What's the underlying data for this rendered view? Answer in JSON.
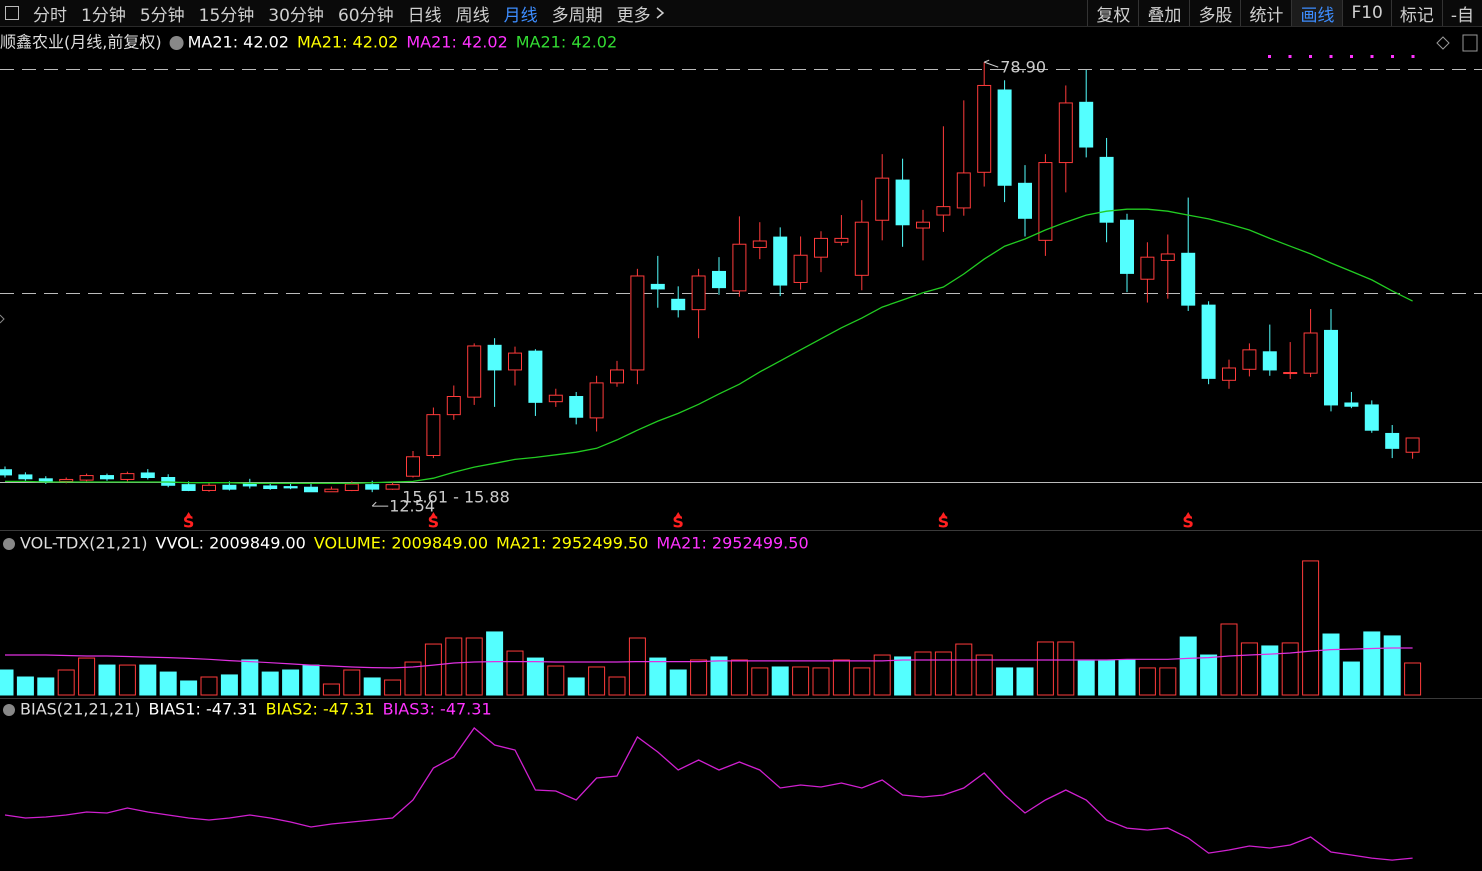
{
  "toolbar": {
    "left": [
      "分时",
      "1分钟",
      "5分钟",
      "15分钟",
      "30分钟",
      "60分钟",
      "日线",
      "周线",
      "月线",
      "多周期",
      "更多"
    ],
    "active_left": 8,
    "right": [
      "复权",
      "叠加",
      "多股",
      "统计",
      "画线",
      "F10",
      "标记",
      "-自"
    ],
    "active_right": 4
  },
  "chart_data": [
    {
      "type": "candlestick",
      "title": "顺鑫农业(月线,前复权)",
      "legend": [
        {
          "text": "MA21: 42.02",
          "color": "#ffffff"
        },
        {
          "text": "MA21: 42.02",
          "color": "#ffff00"
        },
        {
          "text": "MA21: 42.02",
          "color": "#ff33ff"
        },
        {
          "text": "MA21: 42.02",
          "color": "#33dd33"
        }
      ],
      "up_color": "#ff3b3b",
      "down_color": "#54ffff",
      "open": [
        16.0,
        15.2,
        14.6,
        14.2,
        14.4,
        15.1,
        14.5,
        15.5,
        14.8,
        13.7,
        12.8,
        13.6,
        13.9,
        13.5,
        13.4,
        13.3,
        12.6,
        12.8,
        13.7,
        13.0,
        15.0,
        18.2,
        24.5,
        27.2,
        35.2,
        31.4,
        34.3,
        26.5,
        27.3,
        24.0,
        29.4,
        31.4,
        44.6,
        42.3,
        40.7,
        46.6,
        43.6,
        50.3,
        51.9,
        44.9,
        48.8,
        51.1,
        46.0,
        54.5,
        60.7,
        53.3,
        55.3,
        56.4,
        61.9,
        74.6,
        60.2,
        51.4,
        63.4,
        72.7,
        64.2,
        54.5,
        45.4,
        48.3,
        49.4,
        41.4,
        29.8,
        31.5,
        34.2,
        30.9,
        30.9,
        37.5,
        26.3,
        26.0,
        21.6,
        18.7
      ],
      "high": [
        16.5,
        15.6,
        15.0,
        14.8,
        15.4,
        15.4,
        15.7,
        16.1,
        15.3,
        14.2,
        14.0,
        14.2,
        14.6,
        14.0,
        14.0,
        13.9,
        13.4,
        14.2,
        14.3,
        14.1,
        18.9,
        25.6,
        29.0,
        35.5,
        36.3,
        35.0,
        34.6,
        28.5,
        28.0,
        30.5,
        32.8,
        47.0,
        49.0,
        44.3,
        47.0,
        48.8,
        55.1,
        54.2,
        53.4,
        52.0,
        52.8,
        55.3,
        57.6,
        64.7,
        64.0,
        56.1,
        69.0,
        73.0,
        78.9,
        76.1,
        63.0,
        64.7,
        75.3,
        77.7,
        67.2,
        55.5,
        51.1,
        52.3,
        58.0,
        42.0,
        33.0,
        35.5,
        38.4,
        35.7,
        40.8,
        40.8,
        28.0,
        26.7,
        22.9,
        20.9
      ],
      "low": [
        14.8,
        14.3,
        13.8,
        13.9,
        14.2,
        14.3,
        14.2,
        14.5,
        13.3,
        12.7,
        12.6,
        12.8,
        13.1,
        12.9,
        13.0,
        12.6,
        12.6,
        12.7,
        12.54,
        12.9,
        14.8,
        17.8,
        23.7,
        26.0,
        25.7,
        29.0,
        24.3,
        25.7,
        23.0,
        21.9,
        28.8,
        29.2,
        41.0,
        39.5,
        36.3,
        43.0,
        42.7,
        48.5,
        42.8,
        43.8,
        46.5,
        50.6,
        43.7,
        51.4,
        50.4,
        48.3,
        52.7,
        55.2,
        59.7,
        57.3,
        52.0,
        49.0,
        58.8,
        64.2,
        51.1,
        43.4,
        41.8,
        42.4,
        40.5,
        29.2,
        28.5,
        30.4,
        30.5,
        30.0,
        30.3,
        25.0,
        25.5,
        21.7,
        17.8,
        17.7
      ],
      "close": [
        15.2,
        14.6,
        14.2,
        14.5,
        15.1,
        14.6,
        15.4,
        14.8,
        13.6,
        12.8,
        13.6,
        13.0,
        13.5,
        13.1,
        13.2,
        12.6,
        13.0,
        13.8,
        13.0,
        13.7,
        18.0,
        24.5,
        27.3,
        35.1,
        31.4,
        34.0,
        26.4,
        27.5,
        24.1,
        29.4,
        31.4,
        45.9,
        43.9,
        40.7,
        45.9,
        44.1,
        50.8,
        51.3,
        44.5,
        49.1,
        51.7,
        51.7,
        54.2,
        61.0,
        53.8,
        54.2,
        56.6,
        61.8,
        75.3,
        59.9,
        54.8,
        63.4,
        72.6,
        65.8,
        54.2,
        46.3,
        48.8,
        49.3,
        41.4,
        30.1,
        31.7,
        34.5,
        31.4,
        31.0,
        37.1,
        26.0,
        25.8,
        22.1,
        19.3,
        20.9
      ],
      "ma": {
        "color": "#22cc22",
        "values": [
          14.2,
          14.2,
          14.1,
          14.1,
          14.1,
          14.1,
          14.1,
          14.1,
          14.1,
          14.0,
          14.0,
          14.0,
          13.9,
          13.9,
          13.9,
          13.9,
          13.9,
          13.9,
          14.0,
          14.1,
          14.2,
          14.7,
          15.6,
          16.4,
          17.0,
          17.6,
          17.9,
          18.3,
          18.7,
          19.3,
          20.6,
          22.1,
          23.5,
          24.7,
          26.1,
          27.7,
          29.2,
          31.1,
          32.8,
          34.5,
          36.2,
          37.9,
          39.4,
          41.1,
          42.2,
          43.3,
          44.2,
          46.2,
          48.5,
          50.5,
          51.6,
          53.0,
          54.2,
          55.3,
          55.9,
          56.2,
          56.2,
          55.9,
          55.3,
          54.7,
          53.9,
          53.0,
          51.7,
          50.5,
          49.3,
          47.9,
          46.6,
          45.3,
          43.6,
          42.02
        ]
      },
      "levels": [
        {
          "value": 77.8,
          "style": "dashed"
        },
        {
          "value": 43.3,
          "style": "dashed"
        },
        {
          "value": 14.1,
          "style": "solid"
        }
      ],
      "annotations": [
        "78.90",
        "12.54",
        "15.61 - 15.88"
      ],
      "signals": {
        "label": "S",
        "color": "#ff2020",
        "candles": [
          9,
          21,
          33,
          46,
          58
        ]
      },
      "ylim": [
        6.7,
        80.0
      ]
    },
    {
      "type": "bar",
      "title": "VOL-TDX(21,21)",
      "legend": [
        {
          "text": "VVOL: 2009849.00",
          "color": "#ffffff"
        },
        {
          "text": "VOLUME: 2009849.00",
          "color": "#ffff00"
        },
        {
          "text": "MA21: 2952499.50",
          "color": "#ffff00"
        },
        {
          "text": "MA21: 2952499.50",
          "color": "#ff33ff"
        }
      ],
      "values": [
        1570000,
        1130000,
        1070000,
        1570000,
        2320000,
        1880000,
        1880000,
        1880000,
        1440000,
        880000,
        1130000,
        1260000,
        2200000,
        1440000,
        1570000,
        1880000,
        690000,
        1570000,
        1070000,
        940000,
        2070000,
        3200000,
        3580000,
        3580000,
        3960000,
        2760000,
        2320000,
        1820000,
        1070000,
        1760000,
        1130000,
        3580000,
        2320000,
        1570000,
        2200000,
        2390000,
        2200000,
        1700000,
        1760000,
        1760000,
        1700000,
        2200000,
        1700000,
        2510000,
        2390000,
        2700000,
        2700000,
        3200000,
        2510000,
        1700000,
        1700000,
        3330000,
        3330000,
        2200000,
        2200000,
        2200000,
        1700000,
        1700000,
        3640000,
        2510000,
        4460000,
        3270000,
        3080000,
        3270000,
        8420000,
        3830000,
        2070000,
        3960000,
        3710000,
        2009849
      ],
      "ma": {
        "color": "#e030e0",
        "values": [
          2510000,
          2510000,
          2510000,
          2480000,
          2450000,
          2450000,
          2420000,
          2380000,
          2350000,
          2300000,
          2240000,
          2160000,
          2100000,
          2030000,
          1950000,
          1880000,
          1820000,
          1760000,
          1720000,
          1700000,
          1760000,
          1880000,
          2010000,
          2070000,
          2100000,
          2100000,
          2100000,
          2070000,
          2070000,
          2070000,
          2070000,
          2100000,
          2100000,
          2100000,
          2100000,
          2140000,
          2140000,
          2140000,
          2140000,
          2140000,
          2140000,
          2140000,
          2140000,
          2140000,
          2200000,
          2200000,
          2200000,
          2200000,
          2200000,
          2200000,
          2200000,
          2200000,
          2200000,
          2200000,
          2200000,
          2240000,
          2240000,
          2240000,
          2300000,
          2350000,
          2450000,
          2510000,
          2570000,
          2640000,
          2760000,
          2850000,
          2880000,
          2920000,
          2950000,
          2952499.5
        ]
      },
      "ylim": [
        0,
        8792000
      ]
    },
    {
      "type": "line",
      "title": "BIAS(21,21,21)",
      "legend": [
        {
          "text": "BIAS1: -47.31",
          "color": "#ffffff"
        },
        {
          "text": "BIAS2: -47.31",
          "color": "#ffff00"
        },
        {
          "text": "BIAS3: -47.31",
          "color": "#ff33ff"
        }
      ],
      "color": "#d020d0",
      "values": [
        6.2,
        2.5,
        3.7,
        6.2,
        10.0,
        8.7,
        14.9,
        10.0,
        6.2,
        2.5,
        0,
        2.5,
        6.2,
        2.5,
        -2.5,
        -8.7,
        -5.0,
        -2.5,
        0,
        2.5,
        24.9,
        64.7,
        78.4,
        114.4,
        93.3,
        87.1,
        37.3,
        36.1,
        24.9,
        52.3,
        54.7,
        103.3,
        84.6,
        62.2,
        74.6,
        62.2,
        72.2,
        62.2,
        39.8,
        43.5,
        41.1,
        46.0,
        39.8,
        49.8,
        31.1,
        28.6,
        31.1,
        39.8,
        58.5,
        31.1,
        8.7,
        24.9,
        37.3,
        24.9,
        0,
        -10.0,
        -12.4,
        -10.0,
        -22.4,
        -41.1,
        -37.3,
        -32.3,
        -34.8,
        -31.1,
        -21.1,
        -39.8,
        -43.5,
        -47.3,
        -49.8,
        -47.31
      ],
      "ylim": [
        -63.4,
        124.4
      ]
    }
  ]
}
